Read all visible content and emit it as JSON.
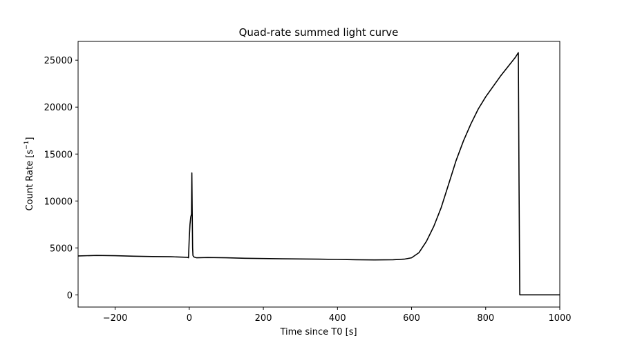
{
  "chart_data": {
    "type": "line",
    "title": "Quad-rate summed light curve",
    "xlabel": "Time since T0 [s]",
    "ylabel_main": "Count Rate [s",
    "ylabel_sup": "−1",
    "ylabel_close": "]",
    "xlim": [
      -300,
      1000
    ],
    "ylim": [
      -1300,
      27000
    ],
    "xticks": [
      -200,
      0,
      200,
      400,
      600,
      800,
      1000
    ],
    "xtick_labels": [
      "−200",
      "0",
      "200",
      "400",
      "600",
      "800",
      "1000"
    ],
    "yticks": [
      0,
      5000,
      10000,
      15000,
      20000,
      25000
    ],
    "ytick_labels": [
      "0",
      "5000",
      "10000",
      "15000",
      "20000",
      "25000"
    ],
    "grid": false,
    "line_color": "#000000",
    "series": [
      {
        "x": [
          -300,
          -250,
          -200,
          -150,
          -100,
          -50,
          -5,
          -2,
          0,
          2,
          4,
          6,
          7,
          8,
          9,
          10,
          12,
          15,
          20,
          50,
          100,
          150,
          200,
          250,
          300,
          350,
          400,
          450,
          500,
          550,
          580,
          600,
          620,
          640,
          660,
          680,
          700,
          720,
          740,
          760,
          780,
          800,
          820,
          840,
          860,
          880,
          885,
          888,
          890,
          892,
          900,
          950,
          1000
        ],
        "y": [
          4150,
          4200,
          4170,
          4120,
          4080,
          4060,
          4000,
          3950,
          6000,
          7500,
          8300,
          8600,
          13000,
          9000,
          5000,
          4200,
          4050,
          4000,
          3950,
          3980,
          3950,
          3900,
          3870,
          3840,
          3820,
          3800,
          3770,
          3740,
          3720,
          3740,
          3800,
          3950,
          4500,
          5700,
          7300,
          9300,
          11800,
          14300,
          16400,
          18200,
          19800,
          21100,
          22200,
          23300,
          24300,
          25300,
          25600,
          25800,
          12000,
          0,
          0,
          0,
          0
        ]
      }
    ]
  }
}
